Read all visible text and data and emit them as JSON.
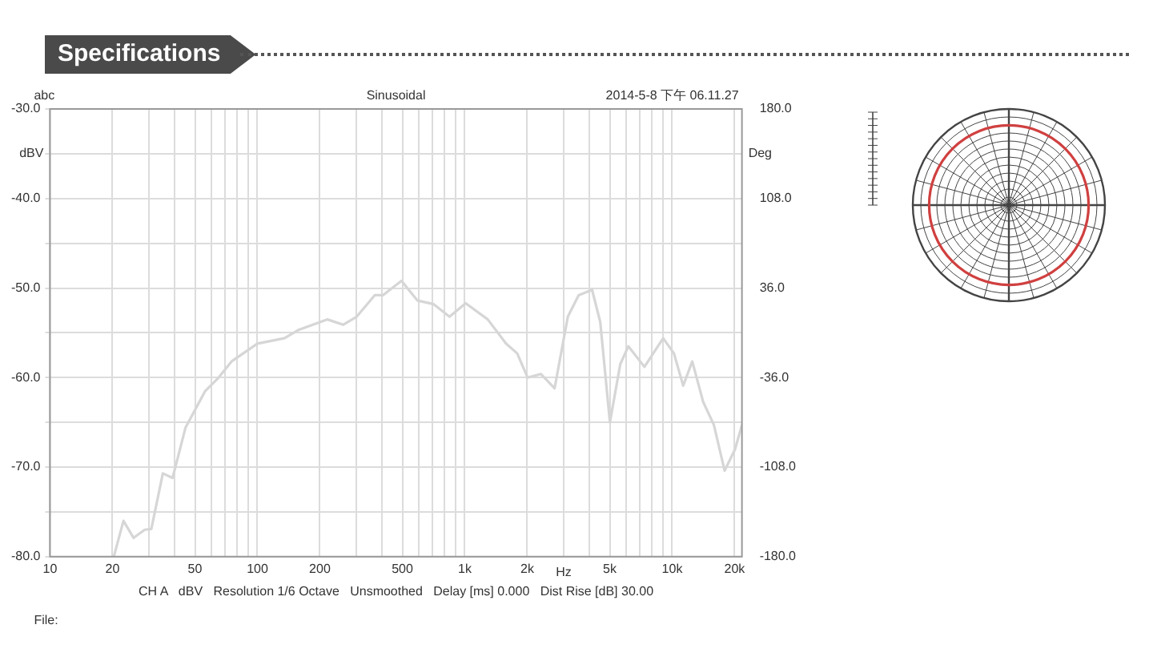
{
  "chart_data": {
    "type": "line",
    "title": "Specifications",
    "subtitle": "Sinusoidal",
    "xlabel": "Hz",
    "ylabel": "dBV",
    "y2label": "Deg",
    "annotations": [
      "abc",
      "2014-5-8 下午 06.11.27",
      "CH A   dBV   Resolution 1/6 Octave   Unsmoothed   Delay [ms] 0.000   Dist Rise [dB] 30.00",
      "File:"
    ],
    "series": [
      {
        "color": "#d6d6d6",
        "x": [
          20.3,
          22.6,
          25.3,
          28.6,
          30.8,
          35,
          39,
          45,
          56,
          65,
          75,
          100,
          135,
          157,
          217,
          259,
          301,
          368,
          403,
          495,
          592,
          708,
          844,
          1010,
          1290,
          1580,
          1790,
          2010,
          2330,
          2710,
          3140,
          3540,
          4110,
          4500,
          5010,
          5620,
          6150,
          7350,
          9050,
          10200,
          11300,
          12500,
          14100,
          15900,
          17900,
          20100,
          21700
        ],
        "values": [
          -80,
          -76,
          -77.9,
          -77,
          -76.9,
          -70.7,
          -71.2,
          -65.6,
          -61.5,
          -60,
          -58.2,
          -56.2,
          -55.6,
          -54.7,
          -53.5,
          -54.1,
          -53.2,
          -50.8,
          -50.8,
          -49.2,
          -51.4,
          -51.8,
          -53.2,
          -51.7,
          -53.5,
          -56.2,
          -57.3,
          -60,
          -59.6,
          -61.2,
          -53.2,
          -50.8,
          -50.2,
          -53.8,
          -65,
          -58.5,
          -56.5,
          -58.8,
          -55.6,
          -57.3,
          -60.9,
          -58.2,
          -62.7,
          -65.3,
          -70.4,
          -68,
          -65.3
        ]
      }
    ],
    "log": "x",
    "grid": true,
    "legend": false,
    "marker": "none",
    "line_style": "solid",
    "xlim": [
      10,
      21700
    ],
    "xticks": [
      {
        "value": 10,
        "label": "10"
      },
      {
        "value": 20,
        "label": "20"
      },
      {
        "value": 30,
        "label": null
      },
      {
        "value": 40,
        "label": null
      },
      {
        "value": 50,
        "label": "50"
      },
      {
        "value": 60,
        "label": null
      },
      {
        "value": 70,
        "label": null
      },
      {
        "value": 80,
        "label": null
      },
      {
        "value": 90,
        "label": null
      },
      {
        "value": 100,
        "label": "100"
      },
      {
        "value": 200,
        "label": "200"
      },
      {
        "value": 300,
        "label": null
      },
      {
        "value": 400,
        "label": null
      },
      {
        "value": 500,
        "label": "500"
      },
      {
        "value": 600,
        "label": null
      },
      {
        "value": 700,
        "label": null
      },
      {
        "value": 800,
        "label": null
      },
      {
        "value": 900,
        "label": null
      },
      {
        "value": 1000,
        "label": "1k"
      },
      {
        "value": 2000,
        "label": "2k"
      },
      {
        "value": 3000,
        "label": null
      },
      {
        "value": 4000,
        "label": null
      },
      {
        "value": 5000,
        "label": "5k"
      },
      {
        "value": 6000,
        "label": null
      },
      {
        "value": 7000,
        "label": null
      },
      {
        "value": 8000,
        "label": null
      },
      {
        "value": 9000,
        "label": null
      },
      {
        "value": 10000,
        "label": "10k"
      },
      {
        "value": 20000,
        "label": "20k"
      }
    ],
    "ylim": [
      -80,
      -30
    ],
    "yticks": [
      {
        "value": -80,
        "label": "-80.0"
      },
      {
        "value": -75,
        "label": null
      },
      {
        "value": -70,
        "label": "-70.0"
      },
      {
        "value": -65,
        "label": null
      },
      {
        "value": -60,
        "label": "-60.0"
      },
      {
        "value": -55,
        "label": null
      },
      {
        "value": -50,
        "label": "-50.0"
      },
      {
        "value": -45,
        "label": null
      },
      {
        "value": -40,
        "label": "-40.0"
      },
      {
        "value": -35,
        "label": null
      },
      {
        "value": -30,
        "label": "-30.0"
      }
    ],
    "y2lim": [
      -180,
      180
    ],
    "y2ticks": [
      {
        "value": -180,
        "label": "-180.0"
      },
      {
        "value": -108,
        "label": "-108.0"
      },
      {
        "value": -36,
        "label": "-36.0"
      },
      {
        "value": 36,
        "label": "36.0"
      },
      {
        "value": 108,
        "label": "108.0"
      },
      {
        "value": 180,
        "label": "180.0"
      }
    ]
  }
}
